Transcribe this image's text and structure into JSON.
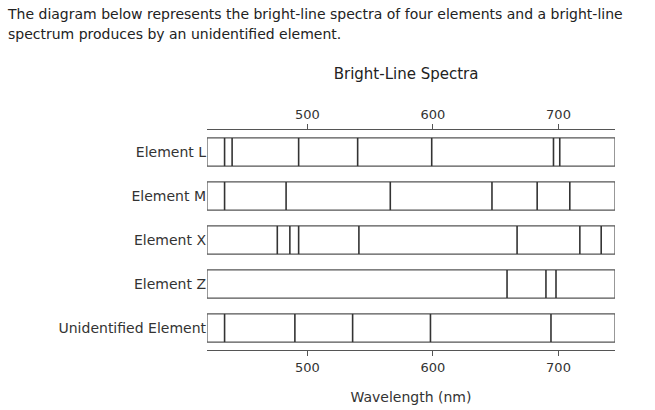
{
  "header": "The diagram below represents the bright-line spectra of four elements and a bright-line spectrum produces by an unidentified element.",
  "chart_data": {
    "type": "spectrum",
    "title": "Bright-Line Spectra",
    "x_label": "Wavelength (nm)",
    "xlim": [
      420,
      745
    ],
    "xticks": [
      500,
      600,
      700
    ],
    "color": "#333333",
    "series": [
      {
        "name": "Element L",
        "values": [
          434,
          440,
          493,
          540,
          599,
          696,
          701
        ]
      },
      {
        "name": "Element M",
        "values": [
          434,
          483,
          566,
          647,
          683,
          709
        ]
      },
      {
        "name": "Element X",
        "values": [
          476,
          486,
          493,
          541,
          667,
          717,
          734
        ]
      },
      {
        "name": "Element Z",
        "values": [
          659,
          690,
          698
        ]
      },
      {
        "name": "Unidentified Element",
        "values": [
          434,
          490,
          536,
          598,
          694
        ]
      }
    ]
  }
}
